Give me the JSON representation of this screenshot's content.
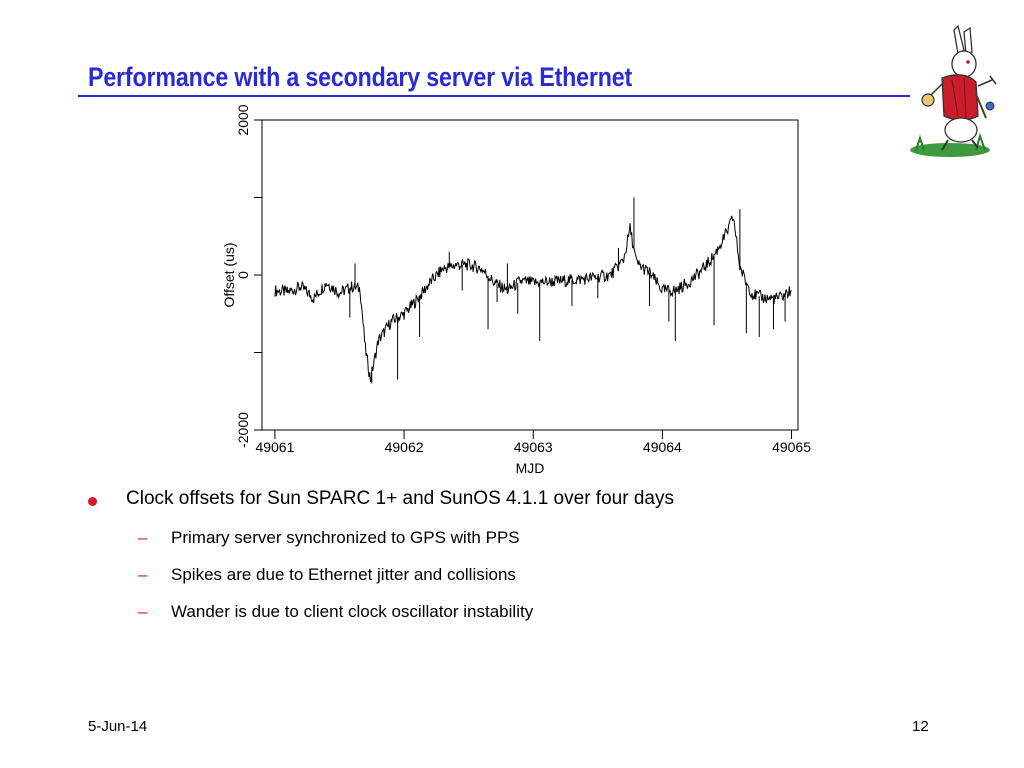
{
  "slide": {
    "title": "Performance with a secondary server via Ethernet",
    "date": "5-Jun-14",
    "page_number": "12",
    "colors": {
      "title": "#2b2bd6",
      "bullet": "#e0112b",
      "trace": "#000000"
    }
  },
  "bullets": [
    {
      "level": 1,
      "text": "Clock offsets for Sun SPARC 1+ and SunOS 4.1.1 over four days"
    },
    {
      "level": 2,
      "text": "Primary server synchronized to GPS with PPS"
    },
    {
      "level": 2,
      "text": "Spikes are due to Ethernet jitter and collisions"
    },
    {
      "level": 2,
      "text": "Wander is due to client clock oscillator instability"
    }
  ],
  "decoration": {
    "icon": "white-rabbit-icon"
  },
  "chart_data": {
    "type": "line",
    "title": "",
    "xlabel": "MJD",
    "ylabel": "Offset (us)",
    "xlim": [
      49060.9,
      49065.05
    ],
    "ylim": [
      -2000,
      2000
    ],
    "x_ticks": [
      49061,
      49062,
      49063,
      49064,
      49065
    ],
    "x_tick_labels": [
      "49061",
      "49062",
      "49063",
      "49064",
      "49065"
    ],
    "y_ticks": [
      -2000,
      -1000,
      0,
      1000,
      2000
    ],
    "y_tick_labels": [
      "-2000",
      "",
      "0",
      "",
      "2000"
    ],
    "grid": false,
    "legend": "none",
    "series": [
      {
        "name": "",
        "x": [
          49061.0,
          49061.1,
          49061.2,
          49061.3,
          49061.4,
          49061.5,
          49061.6,
          49061.66,
          49061.7,
          49061.74,
          49061.8,
          49061.9,
          49062.0,
          49062.1,
          49062.2,
          49062.3,
          49062.4,
          49062.5,
          49062.6,
          49062.7,
          49062.8,
          49062.9,
          49063.0,
          49063.2,
          49063.4,
          49063.6,
          49063.7,
          49063.75,
          49063.8,
          49063.9,
          49064.0,
          49064.1,
          49064.2,
          49064.3,
          49064.4,
          49064.5,
          49064.55,
          49064.6,
          49064.65,
          49064.7,
          49064.8,
          49064.9,
          49065.0
        ],
        "y": [
          -200,
          -220,
          -150,
          -300,
          -100,
          -230,
          -150,
          -180,
          -950,
          -1350,
          -850,
          -600,
          -500,
          -320,
          -100,
          80,
          130,
          130,
          80,
          -100,
          -200,
          -80,
          -100,
          -80,
          -50,
          0,
          200,
          600,
          150,
          30,
          -200,
          -200,
          -100,
          50,
          250,
          550,
          750,
          100,
          -100,
          -250,
          -300,
          -300,
          -200
        ]
      }
    ],
    "spikes": [
      {
        "x": 49061.58,
        "y": -550
      },
      {
        "x": 49061.62,
        "y": 150
      },
      {
        "x": 49061.75,
        "y": -1400
      },
      {
        "x": 49061.95,
        "y": -1350
      },
      {
        "x": 49062.12,
        "y": -800
      },
      {
        "x": 49062.35,
        "y": 300
      },
      {
        "x": 49062.45,
        "y": -200
      },
      {
        "x": 49062.65,
        "y": -700
      },
      {
        "x": 49062.72,
        "y": -350
      },
      {
        "x": 49062.8,
        "y": 150
      },
      {
        "x": 49062.88,
        "y": -500
      },
      {
        "x": 49063.05,
        "y": -850
      },
      {
        "x": 49063.3,
        "y": -400
      },
      {
        "x": 49063.5,
        "y": -300
      },
      {
        "x": 49063.66,
        "y": 350
      },
      {
        "x": 49063.78,
        "y": 1000
      },
      {
        "x": 49063.9,
        "y": -400
      },
      {
        "x": 49064.05,
        "y": -600
      },
      {
        "x": 49064.1,
        "y": -850
      },
      {
        "x": 49064.4,
        "y": -650
      },
      {
        "x": 49064.6,
        "y": 850
      },
      {
        "x": 49064.65,
        "y": -750
      },
      {
        "x": 49064.75,
        "y": -800
      },
      {
        "x": 49064.86,
        "y": -700
      },
      {
        "x": 49064.95,
        "y": -600
      }
    ]
  }
}
